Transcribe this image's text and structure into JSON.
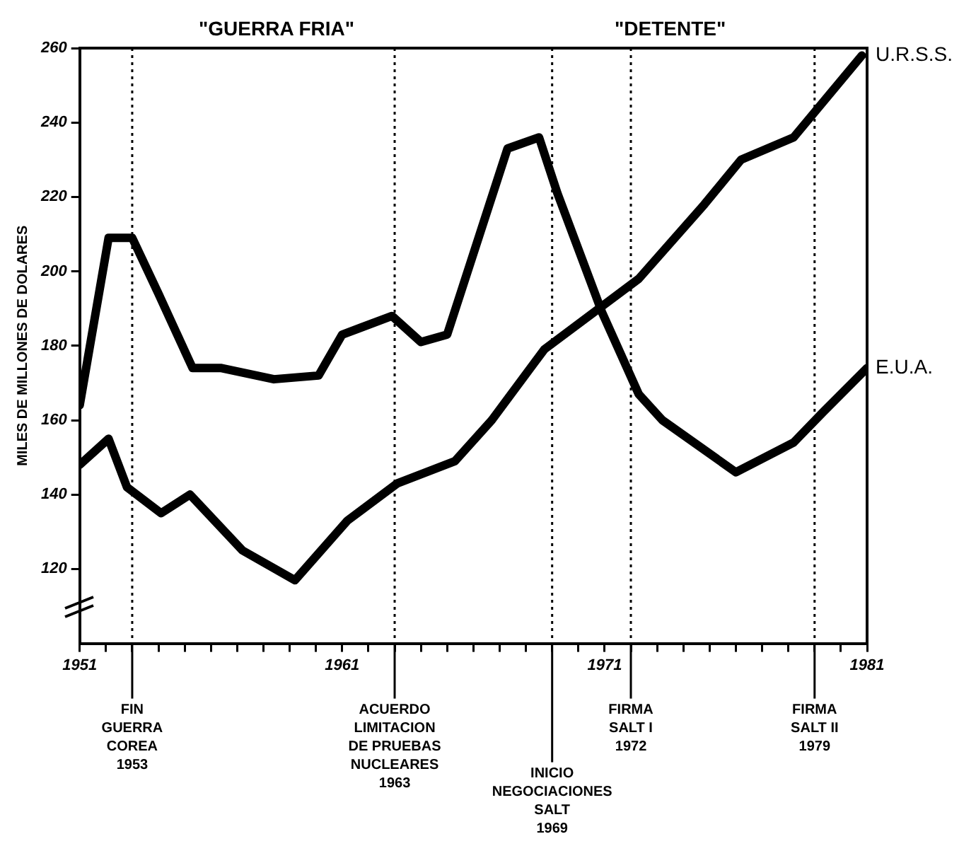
{
  "chart_data": {
    "type": "line",
    "ylabel": "MILES DE MILLONES DE DOLARES",
    "annotations": [
      "\"GUERRA FRIA\"",
      "\"DETENTE\""
    ],
    "series": [
      {
        "name": "U.R.S.S.",
        "color": "#000000",
        "x": [
          1951,
          1952.1,
          1952.8,
          1954.1,
          1955.2,
          1957.2,
          1959.2,
          1961.2,
          1963.1,
          1965.3,
          1966.7,
          1968.7,
          1972.3,
          1974.8,
          1976.2,
          1978.2,
          1980.8
        ],
        "values": [
          148,
          155,
          142,
          135,
          140,
          125,
          117,
          133,
          143,
          149,
          160,
          179,
          198,
          218,
          230,
          236,
          258
        ]
      },
      {
        "name": "E.U.A.",
        "color": "#000000",
        "x": [
          1951,
          1952.1,
          1953,
          1954,
          1955.3,
          1956.4,
          1958.4,
          1960.1,
          1961,
          1962.9,
          1964,
          1965,
          1967.3,
          1968.5,
          1969.2,
          1970.9,
          1972.3,
          1973.2,
          1976,
          1978.2,
          1979.3,
          1981
        ],
        "values": [
          164,
          209,
          209,
          194,
          174,
          174,
          171,
          172,
          183,
          188,
          181,
          183,
          233,
          236,
          221,
          189,
          167,
          160,
          146,
          154,
          162,
          174
        ]
      }
    ],
    "xlim": [
      1951,
      1981
    ],
    "xticks": [
      {
        "value": 1951,
        "label": "1951"
      },
      {
        "value": 1952,
        "label": null
      },
      {
        "value": 1953,
        "label": null
      },
      {
        "value": 1954,
        "label": null
      },
      {
        "value": 1955,
        "label": null
      },
      {
        "value": 1956,
        "label": null
      },
      {
        "value": 1957,
        "label": null
      },
      {
        "value": 1958,
        "label": null
      },
      {
        "value": 1959,
        "label": null
      },
      {
        "value": 1960,
        "label": null
      },
      {
        "value": 1961,
        "label": "1961"
      },
      {
        "value": 1962,
        "label": null
      },
      {
        "value": 1963,
        "label": null
      },
      {
        "value": 1964,
        "label": null
      },
      {
        "value": 1965,
        "label": null
      },
      {
        "value": 1966,
        "label": null
      },
      {
        "value": 1967,
        "label": null
      },
      {
        "value": 1968,
        "label": null
      },
      {
        "value": 1969,
        "label": null
      },
      {
        "value": 1970,
        "label": null
      },
      {
        "value": 1971,
        "label": "1971"
      },
      {
        "value": 1972,
        "label": null
      },
      {
        "value": 1973,
        "label": null
      },
      {
        "value": 1974,
        "label": null
      },
      {
        "value": 1975,
        "label": null
      },
      {
        "value": 1976,
        "label": null
      },
      {
        "value": 1977,
        "label": null
      },
      {
        "value": 1978,
        "label": null
      },
      {
        "value": 1979,
        "label": null
      },
      {
        "value": 1980,
        "label": null
      },
      {
        "value": 1981,
        "label": "1981"
      }
    ],
    "ylim": [
      100,
      260
    ],
    "yticks": [
      120,
      140,
      160,
      180,
      200,
      220,
      240,
      260
    ],
    "ref_lines": [
      {
        "axis": "x",
        "value": 1953,
        "label": "FIN\nGUERRA\nCOREA\n1953",
        "line_style": "dotted"
      },
      {
        "axis": "x",
        "value": 1963,
        "label": "ACUERDO\nLIMITACION\nDE PRUEBAS\nNUCLEARES\n1963",
        "line_style": "dotted"
      },
      {
        "axis": "x",
        "value": 1969,
        "label": "INICIO\nNEGOCIACIONES\nSALT\n1969",
        "line_style": "dotted"
      },
      {
        "axis": "x",
        "value": 1972,
        "label": "FIRMA\nSALT I\n1972",
        "line_style": "dotted"
      },
      {
        "axis": "x",
        "value": 1979,
        "label": "FIRMA\nSALT II\n1979",
        "line_style": "dotted"
      }
    ],
    "grid": false,
    "legend": false,
    "marker": "none",
    "line_style": "solid"
  }
}
